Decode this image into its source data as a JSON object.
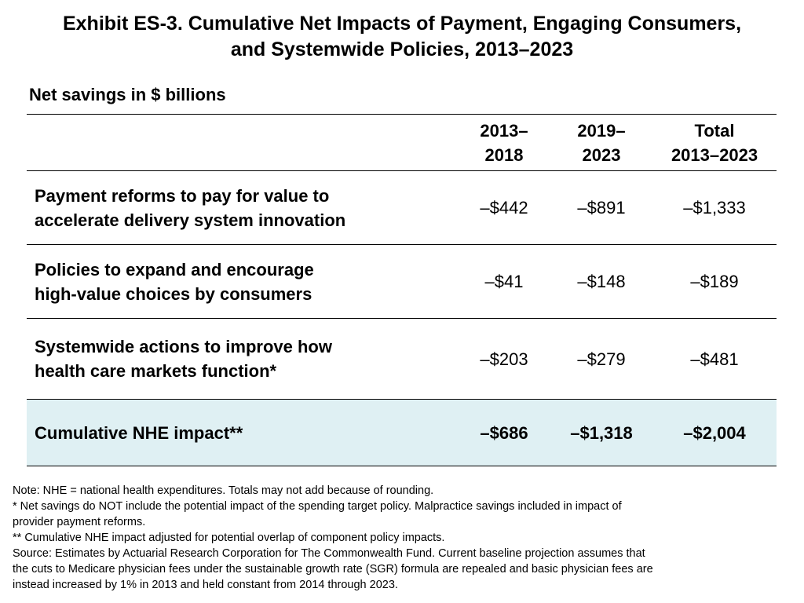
{
  "title": {
    "line1": "Exhibit ES-3. Cumulative Net Impacts of Payment, Engaging Consumers,",
    "line2": "and Systemwide Policies, 2013–2023"
  },
  "subtitle": "Net savings in $ billions",
  "table": {
    "headers": [
      {
        "line1": "",
        "line2": ""
      },
      {
        "line1": "2013–",
        "line2": "2018"
      },
      {
        "line1": "2019–",
        "line2": "2023"
      },
      {
        "line1": "Total",
        "line2": "2013–2023"
      }
    ],
    "rows": [
      {
        "label_line1": "Payment reforms to pay for value to",
        "label_line2": "accelerate delivery system innovation",
        "values": [
          "–$442",
          "–$891",
          "–$1,333"
        ]
      },
      {
        "label_line1": "Policies to expand and encourage",
        "label_line2": "high-value choices by consumers",
        "values": [
          "–$41",
          "–$148",
          "–$189"
        ]
      },
      {
        "label_line1": "Systemwide actions to improve how",
        "label_line2": "health care markets function*",
        "values": [
          "–$203",
          "–$279",
          "–$481"
        ]
      }
    ],
    "total": {
      "label": "Cumulative NHE impact**",
      "values": [
        "–$686",
        "–$1,318",
        "–$2,004"
      ],
      "background": "#dff0f3"
    }
  },
  "notes": [
    "Note: NHE = national health expenditures. Totals may not add because of rounding.",
    "* Net savings do NOT include the potential impact of the spending target policy. Malpractice savings included in impact of",
    "provider payment reforms.",
    "** Cumulative NHE impact adjusted for potential overlap of component policy impacts.",
    "Source: Estimates by Actuarial Research Corporation for The Commonwealth Fund. Current baseline projection assumes that",
    "the cuts to Medicare physician fees under the sustainable growth rate (SGR) formula are repealed and basic physician fees are",
    "instead increased by 1% in 2013 and held constant from 2014 through 2023."
  ]
}
